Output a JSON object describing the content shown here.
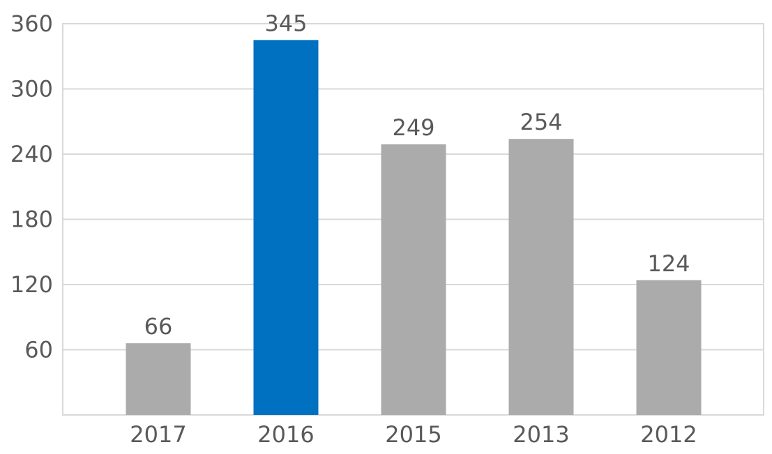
{
  "chart_data": {
    "type": "bar",
    "categories": [
      "2017",
      "2016",
      "2015",
      "2013",
      "2012"
    ],
    "values": [
      66,
      345,
      249,
      254,
      124
    ],
    "colors": [
      "#ababab",
      "#0070c0",
      "#ababab",
      "#ababab",
      "#ababab"
    ],
    "ylim": [
      0,
      360
    ],
    "yticks": [
      60,
      120,
      180,
      240,
      300,
      360
    ],
    "grid": true
  }
}
